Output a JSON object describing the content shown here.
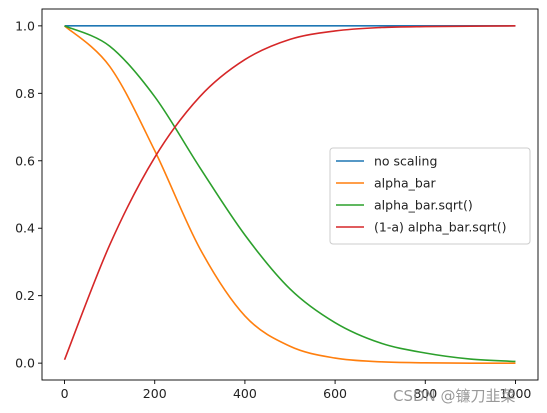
{
  "chart_data": {
    "type": "line",
    "title": "",
    "xlabel": "",
    "ylabel": "",
    "xlim": [
      -50,
      1050
    ],
    "ylim": [
      -0.05,
      1.05
    ],
    "xticks": [
      0,
      200,
      400,
      600,
      800,
      1000
    ],
    "yticks": [
      0.0,
      0.2,
      0.4,
      0.6,
      0.8,
      1.0
    ],
    "xtick_labels": [
      "0",
      "200",
      "400",
      "600",
      "800",
      "1000"
    ],
    "ytick_labels": [
      "0.0",
      "0.2",
      "0.4",
      "0.6",
      "0.8",
      "1.0"
    ],
    "grid": false,
    "legend_position": "center-right",
    "x": [
      0,
      100,
      200,
      300,
      400,
      500,
      600,
      700,
      800,
      900,
      1000
    ],
    "series": [
      {
        "name": "no scaling",
        "color": "#1f77b4",
        "values": [
          1.0,
          1.0,
          1.0,
          1.0,
          1.0,
          1.0,
          1.0,
          1.0,
          1.0,
          1.0,
          1.0
        ]
      },
      {
        "name": "alpha_bar",
        "color": "#ff7f0e",
        "values": [
          1.0,
          0.88,
          0.63,
          0.34,
          0.14,
          0.05,
          0.015,
          0.004,
          0.001,
          0.0,
          0.0
        ]
      },
      {
        "name": "alpha_bar.sqrt()",
        "color": "#2ca02c",
        "values": [
          1.0,
          0.94,
          0.79,
          0.58,
          0.38,
          0.22,
          0.12,
          0.06,
          0.03,
          0.012,
          0.005
        ]
      },
      {
        "name": "(1-a) alpha_bar.sqrt()",
        "color": "#d62728",
        "values": [
          0.01,
          0.35,
          0.61,
          0.79,
          0.9,
          0.96,
          0.985,
          0.995,
          0.998,
          0.999,
          1.0
        ]
      }
    ]
  },
  "watermark": "CSDN @镰刀韭菜"
}
